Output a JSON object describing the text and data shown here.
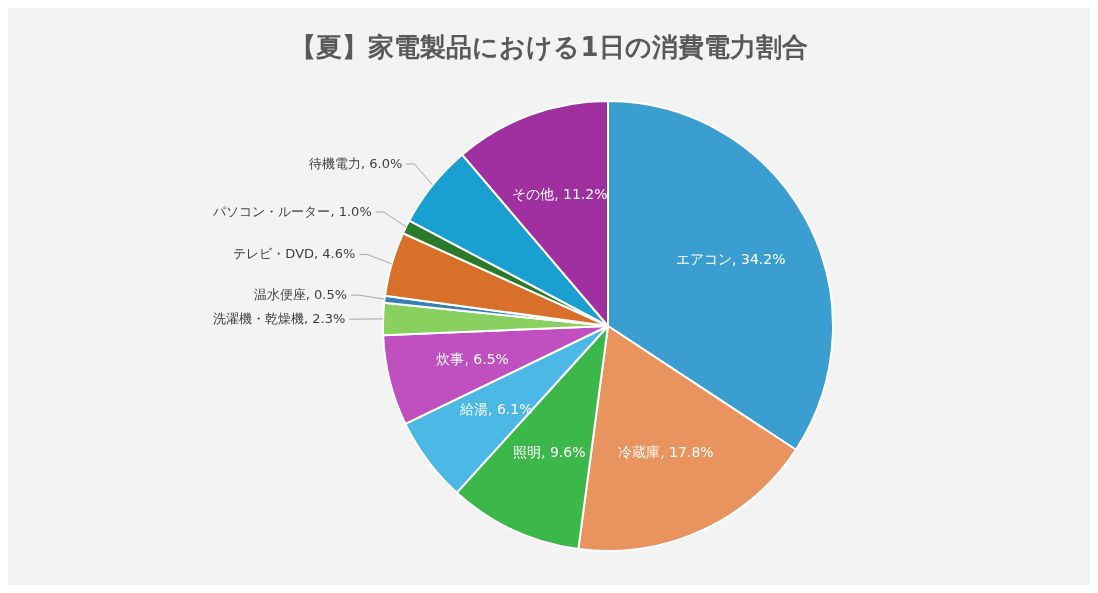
{
  "chart_data": {
    "type": "pie",
    "title": "【夏】家電製品における1日の消費電力割合",
    "categories": [
      "エアコン",
      "冷蔵庫",
      "照明",
      "給湯",
      "炊事",
      "洗濯機・乾燥機",
      "温水便座",
      "テレビ・DVD",
      "パソコン・ルーター",
      "待機電力",
      "その他"
    ],
    "values": [
      34.2,
      17.8,
      9.6,
      6.1,
      6.5,
      2.3,
      0.5,
      4.6,
      1.0,
      6.0,
      11.2
    ],
    "value_labels": [
      ", 34.2%",
      ", 17.8%",
      ", 9.6%",
      ", 6.1%",
      ", 6.5%",
      ", 2.3%",
      ", 0.5%",
      ", 4.6%",
      ", 1.0%",
      ", 6.0%",
      ", 11.2%"
    ],
    "colors": [
      "#3a9fd0",
      "#e9935e",
      "#3cb84a",
      "#4cb8e6",
      "#c04fc0",
      "#8ad060",
      "#3a7fb0",
      "#d8702a",
      "#2a7a2a",
      "#1aa0d0",
      "#a030a0"
    ]
  }
}
